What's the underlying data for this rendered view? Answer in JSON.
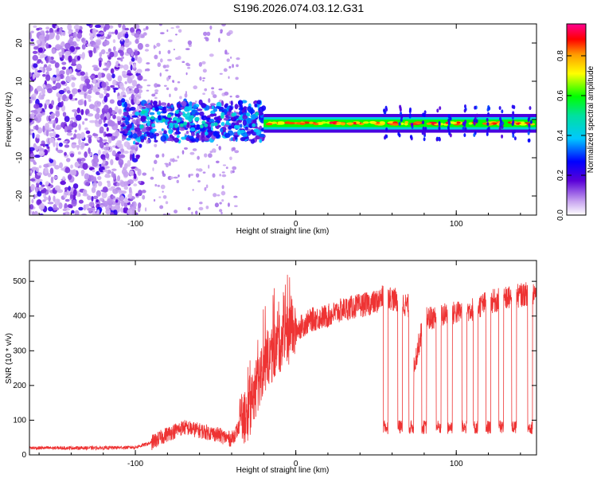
{
  "title": "S196.2026.074.03.12.G31",
  "chart_data": [
    {
      "type": "heatmap",
      "xlabel": "Height of straight line (km)",
      "ylabel": "Frequency (Hz)",
      "xlim": [
        -166,
        150
      ],
      "ylim": [
        -25,
        25
      ],
      "xticks": [
        -100,
        0,
        100
      ],
      "yticks": [
        -20,
        -10,
        0,
        10,
        20
      ],
      "colorbar": {
        "label": "Normalized spectral amplitude",
        "range": [
          0,
          0.96
        ],
        "ticks": [
          0.0,
          0.2,
          0.4,
          0.6,
          0.8
        ],
        "tick_labels": [
          "0.0",
          "0.2",
          "0.4",
          "0.6",
          "0.8"
        ]
      },
      "regions": [
        {
          "name": "noise scatter",
          "x": [
            -166,
            -96
          ],
          "freq": [
            -25,
            25
          ],
          "amplitude": 0.15
        },
        {
          "name": "transition band",
          "x": [
            -108,
            -20
          ],
          "freq": [
            -8,
            5
          ],
          "amplitude": 0.3
        },
        {
          "name": "stable carrier",
          "x": [
            -20,
            150
          ],
          "freq": [
            -2,
            0
          ],
          "amplitude": 0.85
        }
      ]
    },
    {
      "type": "line",
      "xlabel": "Height of straight line (km)",
      "ylabel": "SNR (10 * v/v)",
      "xlim": [
        -166,
        150
      ],
      "ylim": [
        0,
        560
      ],
      "xticks": [
        -100,
        0,
        100
      ],
      "yticks": [
        0,
        100,
        200,
        300,
        400,
        500
      ],
      "series": [
        {
          "name": "SNR",
          "color": "#ee3333",
          "x": [
            -166,
            -140,
            -120,
            -100,
            -90,
            -80,
            -70,
            -60,
            -50,
            -40,
            -30,
            -20,
            -10,
            0,
            10,
            20,
            30,
            40,
            50,
            56,
            60,
            70,
            72,
            80,
            90,
            100,
            110,
            120,
            130,
            140,
            150
          ],
          "y": [
            20,
            20,
            20,
            22,
            35,
            60,
            80,
            70,
            60,
            45,
            120,
            260,
            320,
            360,
            390,
            400,
            420,
            430,
            440,
            460,
            450,
            430,
            220,
            390,
            400,
            410,
            420,
            440,
            450,
            460,
            470
          ]
        }
      ],
      "dropouts_x": [
        56,
        65,
        72,
        80,
        89,
        96,
        105,
        112,
        120,
        128,
        136,
        146
      ],
      "dropout_level": 80
    }
  ]
}
